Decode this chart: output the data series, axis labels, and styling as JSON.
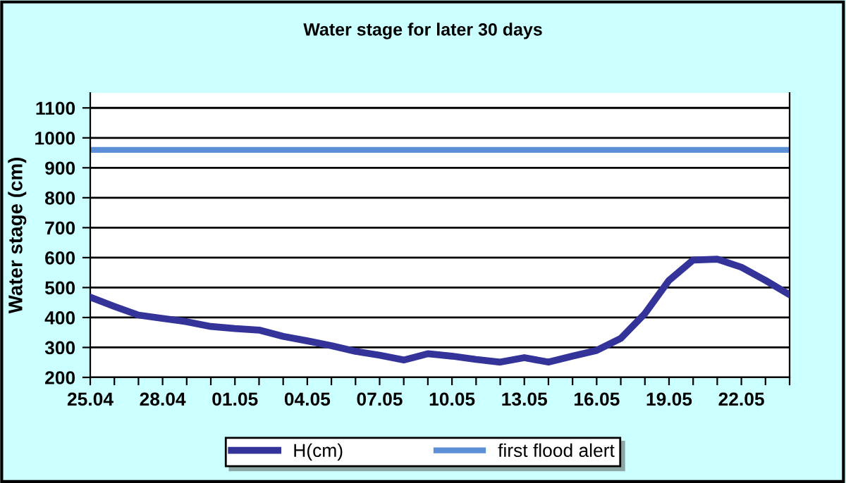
{
  "chart_data": {
    "type": "line",
    "title": "Water stage for later 30 days",
    "ylabel": "Water stage (cm)",
    "categories": [
      "25.04",
      null,
      null,
      "28.04",
      null,
      null,
      "01.05",
      null,
      null,
      "04.05",
      null,
      null,
      "07.05",
      null,
      null,
      "10.05",
      null,
      null,
      "13.05",
      null,
      null,
      "16.05",
      null,
      null,
      "19.05",
      null,
      null,
      "22.05",
      null,
      null
    ],
    "series": [
      {
        "name": "H(cm)",
        "color": "#333399",
        "values": [
          468,
          437,
          408,
          397,
          386,
          370,
          363,
          358,
          337,
          322,
          306,
          287,
          274,
          258,
          279,
          271,
          260,
          251,
          266,
          251,
          271,
          290,
          330,
          413,
          524,
          592,
          595,
          568,
          524,
          476
        ]
      }
    ],
    "ref_lines": [
      {
        "axis": "y",
        "value": 960,
        "label": "first flood alert",
        "color": "#5b8fd6"
      }
    ],
    "ylim": [
      200,
      1150
    ],
    "yticks": [
      200,
      300,
      400,
      500,
      600,
      700,
      800,
      900,
      1000,
      1100
    ],
    "grid": "y",
    "legend": "bottom",
    "marker": "none",
    "line_style": "solid"
  }
}
